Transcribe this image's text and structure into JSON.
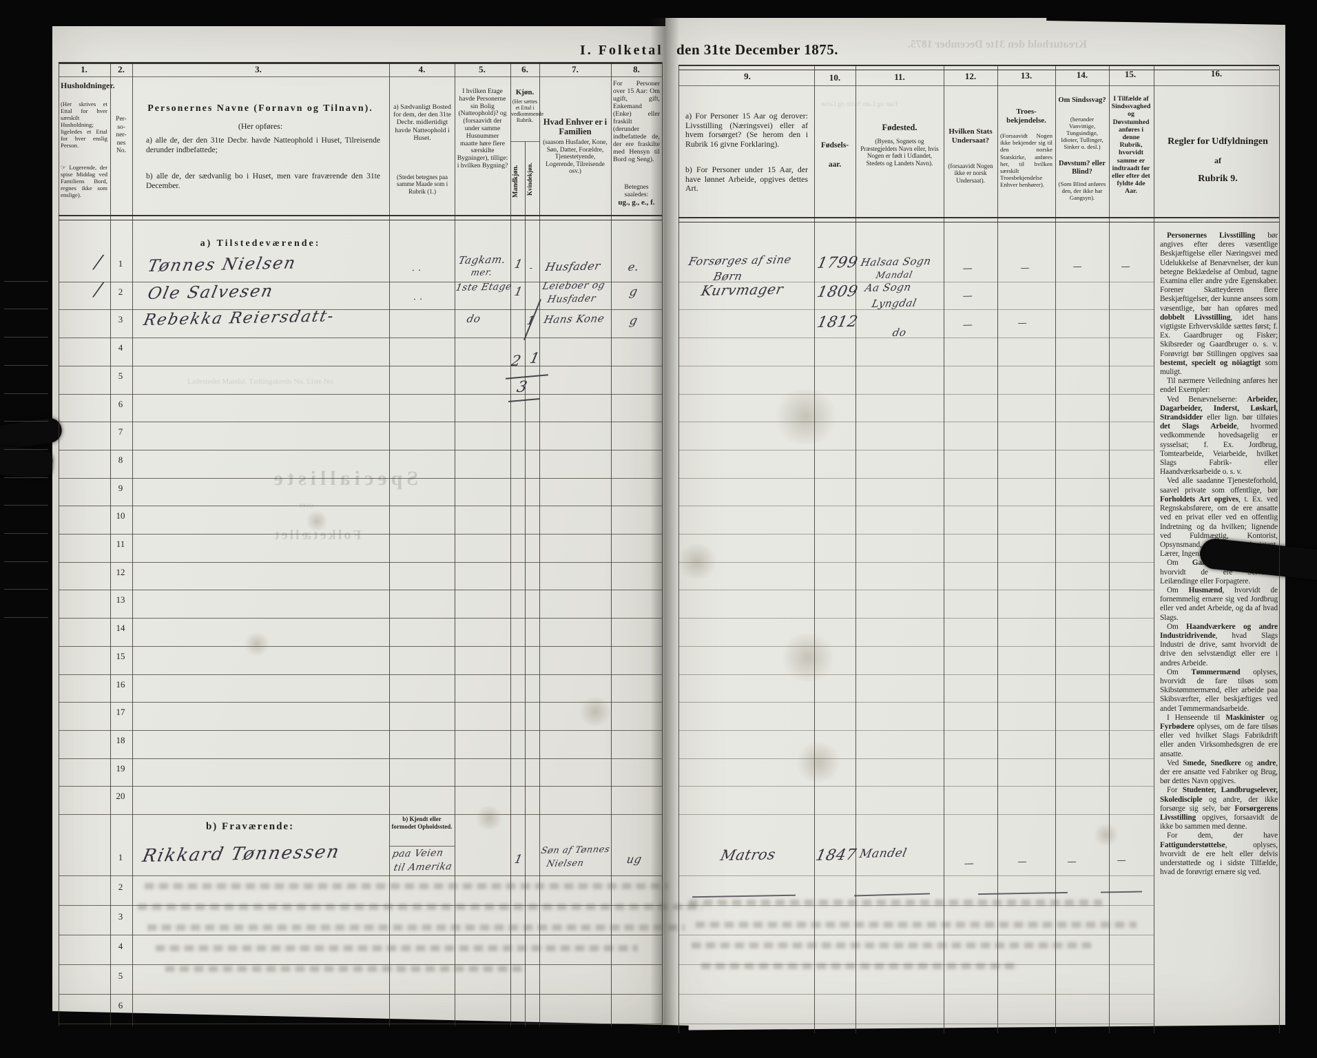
{
  "title": {
    "part1": "I. Folketal",
    "part2": "den 31te December 1875."
  },
  "sections": {
    "a_label": "a) Tilstedeværende:",
    "b_label": "b) Fraværende:",
    "b_sub": "b) Kjendt eller formodet Opholdssted."
  },
  "columns": {
    "c1": {
      "no": "1.",
      "title": "Husholdninger.",
      "note1": "(Her skrives et Ettal for hver særskilt Husholdning; ligeledes et Ettal for hver enslig Person.",
      "note2": "☞ Logerende, der spise Middag ved Familiens Bord, regnes ikke som enslige)."
    },
    "c2": {
      "no": "2.",
      "lines": [
        "Per-",
        "so-",
        "ner-",
        "nes",
        "No."
      ]
    },
    "c3": {
      "no": "3.",
      "title": "Personernes Navne (Fornavn og Tilnavn).",
      "sub": "(Her opføres:",
      "a": "a) alle de, der den 31te Decbr. havde Natteophold i Huset, Tilreisende derunder indbefattede;",
      "b": "b) alle de, der sædvanlig bo i Huset, men vare fraværende den 31te December."
    },
    "c4": {
      "no": "4.",
      "title": "a) Sædvanligt Bosted for dem, der den 31te Decbr. midlertidigt havde Natteophold i Huset.",
      "note": "(Stedet betegnes paa samme Maade som i Rubrik (1.)"
    },
    "c5": {
      "no": "5.",
      "title": "I hvilken Etage havde Personerne sin Bolig (Natteophold)? og (forsaavidt der under samme Husnummer maatte høre flere særskilte Bygninger), tillige: i hvilken Bygning?"
    },
    "c6": {
      "no": "6.",
      "title": "Kjøn.",
      "note": "(Her sættes et Ettal i vedkommende Rubrik.",
      "male": "Mandkjøn.",
      "female": "Kvindekjøn."
    },
    "c7": {
      "no": "7.",
      "title": "Hvad Enhver er i Familien",
      "note": "(saasom Husfader, Kone, Søn, Datter, Forældre, Tjenestetyende, Logerende, Tilreisende osv.)"
    },
    "c8": {
      "no": "8.",
      "title": "For Personer over 15 Aar: Om ugift, gift, Enkemand (Enke) eller fraskilt (derunder indbefattede de, der ere fraskilte med Hensyn til Bord og Seng).",
      "note1": "Betegnes saaledes:",
      "note2": "ug., g., e., f."
    },
    "c9": {
      "no": "9.",
      "a": "a) For Personer 15 Aar og derover: Livsstilling (Næringsvei) eller af hvem forsørget? (Se herom den i Rubrik 16 givne Forklaring).",
      "b": "b) For Personer under 15 Aar, der have lønnet Arbeide, opgives dettes Art."
    },
    "c10": {
      "no": "10.",
      "l1": "Fødsels-",
      "l2": "aar."
    },
    "c11": {
      "no": "11.",
      "title": "Fødested.",
      "note": "(Byens, Sognets og Præstegjeldets Navn eller, hvis Nogen er født i Udlandet, Stedets og Landets Navn)."
    },
    "c12": {
      "no": "12.",
      "title": "Hvilken Stats Undersaat?",
      "note": "(forsaavidt Nogen ikke er norsk Undersaat)."
    },
    "c13": {
      "no": "13.",
      "title": "Troes-bekjendelse.",
      "note": "(Forsaavidt Nogen ikke bekjender sig til den norske Statskirke, anføres her, til hvilken særskilt Troesbekjendelse Enhver henhører)."
    },
    "c14": {
      "no": "14.",
      "t1": "Om Sindssvag?",
      "n1": "(herunder Vanvittige, Tungsindige, Idioter, Tullinger, Sinker o. desl.)",
      "t2": "Døvstum? eller Blind?",
      "n2": "(Som Blind anføres den, der ikke har Gangsyn)."
    },
    "c15": {
      "no": "15.",
      "title": "I Tilfælde af Sindssvaghed og Døvstumhed anføres i denne Rubrik, hvorvidt samme er indtraadt før eller efter det fyldte 4de Aar."
    },
    "c16": {
      "no": "16.",
      "r1": "Regler for Udfyldningen",
      "r2": "af",
      "r3": "Rubrik 9."
    }
  },
  "table": {
    "rows_a": 20,
    "rows_b": 6,
    "row_numbers_a": [
      "1",
      "2",
      "3",
      "4",
      "5",
      "6",
      "7",
      "8",
      "9",
      "10",
      "11",
      "12",
      "13",
      "14",
      "15",
      "16",
      "17",
      "18",
      "19",
      "20"
    ],
    "row_numbers_b": [
      "1",
      "2",
      "3",
      "4",
      "5",
      "6"
    ]
  },
  "marks": {
    "dash": "—",
    "dot": "· ·",
    "slash": "∕",
    "tick": "-"
  },
  "handwriting": {
    "a1": {
      "name": "Tønnes Nielsen",
      "floor1": "Tagkam.",
      "floor2": "mer.",
      "male": "1",
      "family": "Husfader",
      "status": "e.",
      "occ1": "Forsørges af sine",
      "occ2": "Børn",
      "year": "1799",
      "birth1": "Halsaa Sogn",
      "birth2": "Mandal"
    },
    "a2": {
      "name": "Ole Salvesen",
      "floor": "1ste Etage",
      "male": "1",
      "family1": "Leieboer og",
      "family2": "Husfader",
      "status": "g",
      "occ": "Kurvmager",
      "year": "1809",
      "birth1": "Aa Sogn",
      "birth2": "Lyngdal"
    },
    "a3": {
      "name": "Rebekka Reiersdatt-",
      "floor": "do",
      "female": "1",
      "family": "Hans Kone",
      "status": "g",
      "year": "1812",
      "birth": "do"
    },
    "sum": {
      "male": "2",
      "female": "1",
      "total": "3"
    },
    "b1": {
      "name": "Rikkard Tønnessen",
      "wh1": "paa Veien",
      "wh2": "til Amerika",
      "male": "1",
      "family1": "Søn af Tønnes",
      "family2": "Nielsen",
      "status": "ug",
      "occ": "Matros",
      "year": "1847",
      "birth": "Mandel"
    }
  },
  "rules_paragraphs": [
    "*Personernes Livsstilling* bør angives efter deres væsentlige Beskjæftigelse eller Næringsvei med Udelukkelse af Benævnelser, der kun betegne Beklædelse af Ombud, tagne Examina eller andre ydre Egenskaber. Forener Skatteyderen flere Beskjæftigelser, der kunne ansees som væsentlige, bør han opføres med *dobbelt Livsstilling*, idet hans vigtigste Erhvervskilde sættes først; f. Ex. Gaardbruger og Fisker; Skibsreder og Gaardbruger o. s. v. Forøvrigt bør Stillingen opgives saa *bestemt, specielt og nöiagtigt* som muligt.",
    "Til nærmere Veiledning anføres her endel Exempler:",
    "Ved Benævnelserne: *Arbeider, Dagarbeider, Inderst, Løskarl, Strandsidder* eller lign. bør tilføies *det Slags Arbeide*, hvormed vedkommende hovedsagelig er sysselsat; f. Ex. Jordbrug, Tomtearbeide, Veiarbeide, hvilket Slags Fabrik- eller Haandværksarbeide o. s. v.",
    "Ved alle saadanne Tjenesteforhold, saavel private som offentlige, bør *Forholdets Art opgives*, t. Ex. ved Regnskabsførere, om de ere ansatte ved en privat eller ved en offentlig Indretning og da hvilken; lignende ved Fuldmægtig, Kontorist, Opsynsmand, Forvalter, Assistent, Lærer, Ingeniør og andre.",
    "Om *Gaardbrugere* oplyses, hvorvidt de ere Selveiere, Leilændinge eller Forpagtere.",
    "Om *Husmænd*, hvorvidt de fornemmelig ernære sig ved Jordbrug eller ved andet Arbeide, og da af hvad Slags.",
    "Om *Haandværkere og andre Industridrivende*, hvad Slags Industri de drive, samt hvorvidt de drive den selvstændigt eller ere i andres Arbeide.",
    "Om *Tømmermænd* oplyses, hvorvidt de fare tilsøs som Skibstømmermænd, eller arbeide paa Skibsværfter, eller beskjæftiges ved andet Tømmermandsarbeide.",
    "I Henseende til *Maskinister* og *Fyrbødere* oplyses, om de fare tilsøs eller ved hvilket Slags Fabrikdrift eller anden Virksomhedsgren de ere ansatte.",
    "Ved *Smede, Snedkere* og *andre*, der ere ansatte ved Fabriker og Brug, bør dettes Navn opgives.",
    "For *Studenter, Landbrugselever, Skoledisciple* og andre, der ikke forsørge sig selv, bør *Forsørgerens Livsstilling* opgives, forsaavidt de ikke bo sammen med denne.",
    "For dem, der have *Fattigunderstøttelse*, oplyses, hvorvidt de ere helt eller delvis understøttede og i sidste Tilfælde, hvad de forøvrigt ernære sig ved."
  ],
  "bleedthrough": {
    "kreaturhold": "Kreaturhold den 31te December 1875.",
    "specialliste": "Specialliste",
    "over": "over",
    "folketaellet": "Folketællet",
    "ladested": "Ladestedet Mandal.    Tællingskreds No.         Liste No.",
    "livestock": "Faar og Lam      Sviin og Grise"
  }
}
